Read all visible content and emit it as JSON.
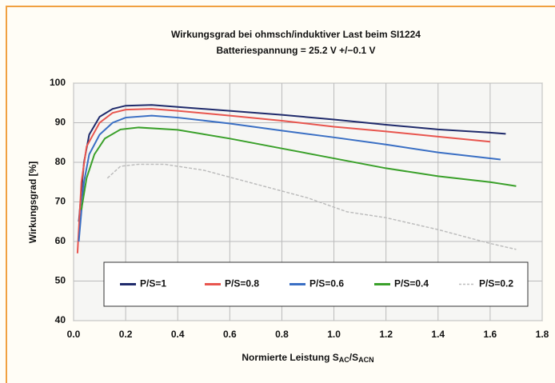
{
  "chart_data": {
    "type": "line",
    "title": "Wirkungsgrad bei ohmsch/induktiver Last beim SI1224",
    "subtitle": "Batteriespannung = 25.2 V +/−0.1 V",
    "ylabel": "Wirkungsgrad [%]",
    "xlabel_parts": [
      "Normierte Leistung S",
      "AC",
      "/S",
      "ACN"
    ],
    "xlim": [
      0,
      1.8
    ],
    "xticks": [
      {
        "value": 0,
        "label": "0.0"
      },
      0.2,
      0.4,
      0.6,
      0.8,
      {
        "value": 1,
        "label": "1.0"
      },
      1.2,
      1.4,
      1.6,
      1.8
    ],
    "ylim": [
      40,
      100
    ],
    "yticks": [
      40,
      50,
      60,
      70,
      80,
      90,
      100
    ],
    "grid": true,
    "legend": "bottom",
    "series": [
      {
        "name": "P/S=1",
        "color": "#1f2a6b",
        "dash": false,
        "x": [
          0.02,
          0.04,
          0.06,
          0.1,
          0.15,
          0.2,
          0.3,
          0.4,
          0.6,
          0.8,
          1.0,
          1.2,
          1.4,
          1.6,
          1.66
        ],
        "values": [
          65,
          80,
          87,
          91.5,
          93.5,
          94.3,
          94.5,
          94,
          93,
          92,
          90.8,
          89.5,
          88.3,
          87.5,
          87.2
        ]
      },
      {
        "name": "P/S=0.8",
        "color": "#e8554e",
        "dash": false,
        "x": [
          0.015,
          0.03,
          0.05,
          0.1,
          0.15,
          0.2,
          0.3,
          0.4,
          0.6,
          0.8,
          1.0,
          1.2,
          1.4,
          1.6
        ],
        "values": [
          57,
          75,
          84,
          90,
          92.5,
          93.3,
          93.5,
          93,
          91.8,
          90.5,
          89,
          87.8,
          86.5,
          85.2
        ]
      },
      {
        "name": "P/S=0.6",
        "color": "#3a6fc4",
        "dash": false,
        "x": [
          0.02,
          0.04,
          0.06,
          0.1,
          0.15,
          0.2,
          0.3,
          0.4,
          0.6,
          0.8,
          1.0,
          1.2,
          1.4,
          1.64
        ],
        "values": [
          60,
          75,
          82,
          87,
          90,
          91.3,
          91.8,
          91.3,
          89.8,
          88,
          86.3,
          84.5,
          82.5,
          80.7
        ]
      },
      {
        "name": "P/S=0.4",
        "color": "#3aa02a",
        "dash": false,
        "x": [
          0.03,
          0.05,
          0.08,
          0.12,
          0.18,
          0.25,
          0.4,
          0.6,
          0.8,
          1.0,
          1.2,
          1.4,
          1.6,
          1.7
        ],
        "values": [
          68,
          76,
          82,
          86,
          88.3,
          88.8,
          88.2,
          86,
          83.5,
          81,
          78.5,
          76.5,
          75,
          74
        ]
      },
      {
        "name": "P/S=0.2",
        "color": "#bdbdbd",
        "dash": true,
        "x": [
          0.13,
          0.18,
          0.25,
          0.35,
          0.5,
          0.7,
          0.9,
          1.05,
          1.2,
          1.4,
          1.6,
          1.7
        ],
        "values": [
          76,
          79,
          79.5,
          79.5,
          78,
          74.5,
          71,
          67.5,
          66,
          63,
          59.5,
          58
        ]
      }
    ]
  }
}
